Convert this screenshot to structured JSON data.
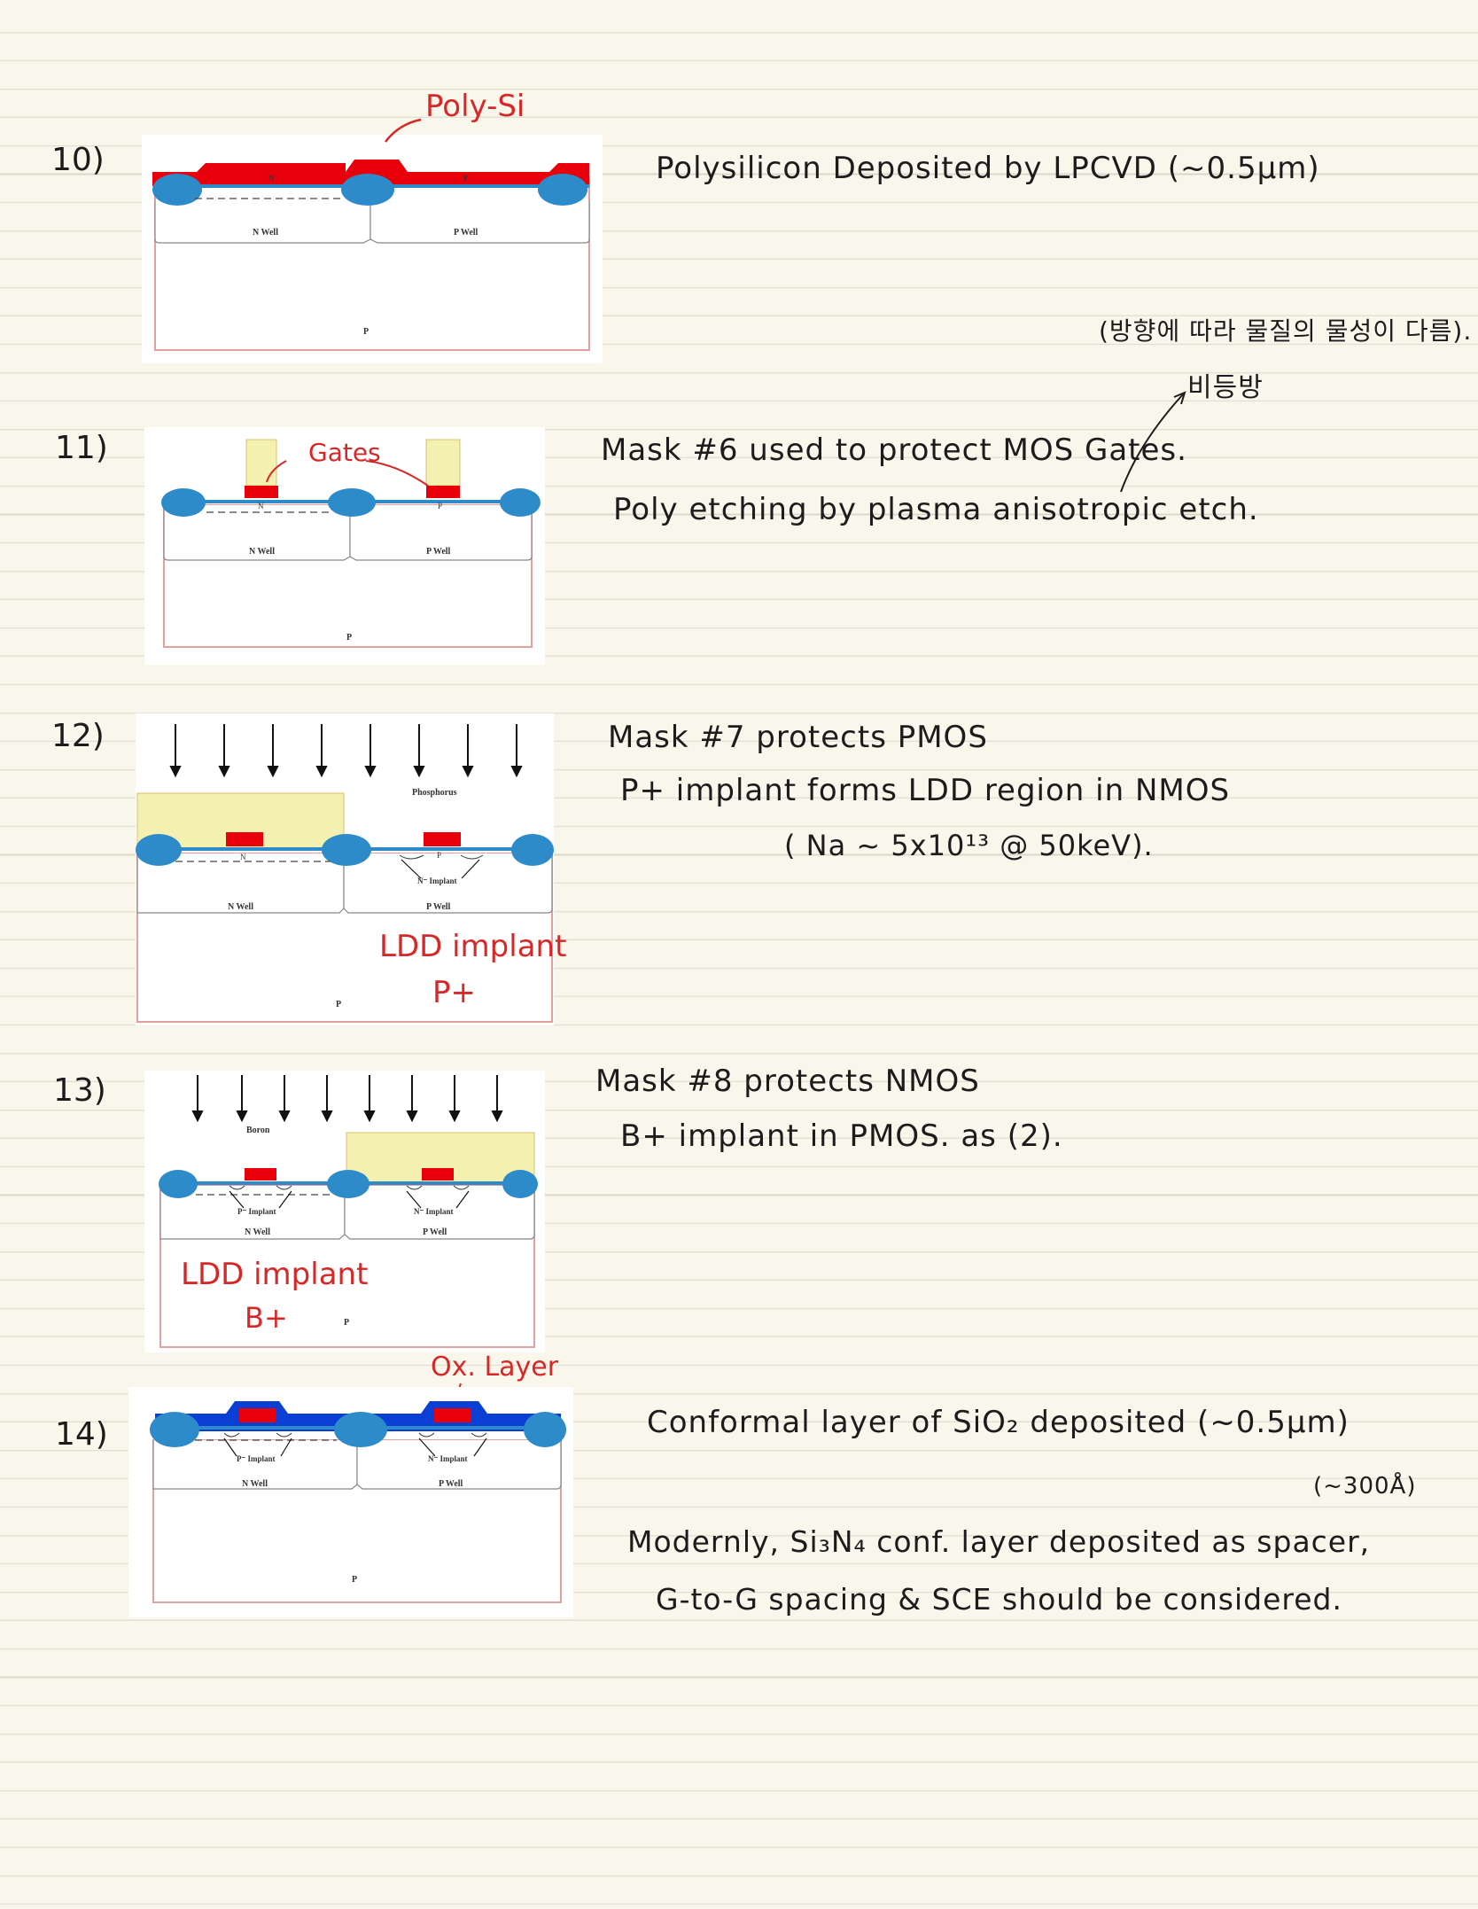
{
  "steps": [
    {
      "number": "10)",
      "caption_lines": [
        "Polysilicon Deposited by LPCVD (~0.5μm)"
      ],
      "annotation": "Poly-Si",
      "labels": {
        "n_region": "N",
        "p_region": "P",
        "n_well": "N Well",
        "p_well": "P Well",
        "substrate": "P"
      }
    },
    {
      "number": "11)",
      "note_top": "(방향에 따라 물질의 물성이 다름).",
      "note_word": "비등방",
      "caption_lines": [
        "Mask #6 used to protect MOS Gates.",
        "Poly etching by plasma anisotropic etch."
      ],
      "annotation": "Gates",
      "labels": {
        "n_region": "N",
        "p_region": "P",
        "n_well": "N Well",
        "p_well": "P Well",
        "substrate": "P"
      }
    },
    {
      "number": "12)",
      "caption_lines": [
        "Mask #7 protects PMOS",
        "P+ implant forms LDD region in NMOS",
        "( Na ~ 5x10¹³ @ 50keV)."
      ],
      "implant_label": "Phosphorus",
      "implant_region": "N⁻ Implant",
      "annotation_lines": [
        "LDD implant",
        "P+"
      ],
      "labels": {
        "n_region": "N",
        "p_region": "P",
        "n_well": "N Well",
        "p_well": "P Well",
        "substrate": "P"
      }
    },
    {
      "number": "13)",
      "caption_lines": [
        "Mask #8 protects NMOS",
        "B+ implant in PMOS. as (2)."
      ],
      "implant_label": "Boron",
      "implant_region_left": "P⁻ Implant",
      "implant_region_right": "N⁻ Implant",
      "annotation_lines": [
        "LDD implant",
        "B+"
      ],
      "labels": {
        "n_region": "N",
        "p_region": "P",
        "n_well": "N Well",
        "p_well": "P Well",
        "substrate": "P"
      }
    },
    {
      "number": "14)",
      "caption_lines": [
        "Conformal layer of SiO₂ deposited (~0.5μm)",
        "(~300Å)",
        "Modernly, Si₃N₄ conf. layer deposited as spacer,",
        "G-to-G spacing & SCE should be considered."
      ],
      "annotation": "Ox. Layer",
      "implant_region_left": "P⁻ Implant",
      "implant_region_right": "N⁻ Implant",
      "labels": {
        "n_region": "N",
        "p_region": "P",
        "n_well": "N Well",
        "p_well": "P Well",
        "substrate": "P"
      }
    }
  ],
  "colors": {
    "poly": "#e8000b",
    "oxide_fox": "#2e8bc9",
    "ox_layer": "#0a3fd6",
    "mask": "#f4f0b0",
    "annotation": "#d62828"
  }
}
